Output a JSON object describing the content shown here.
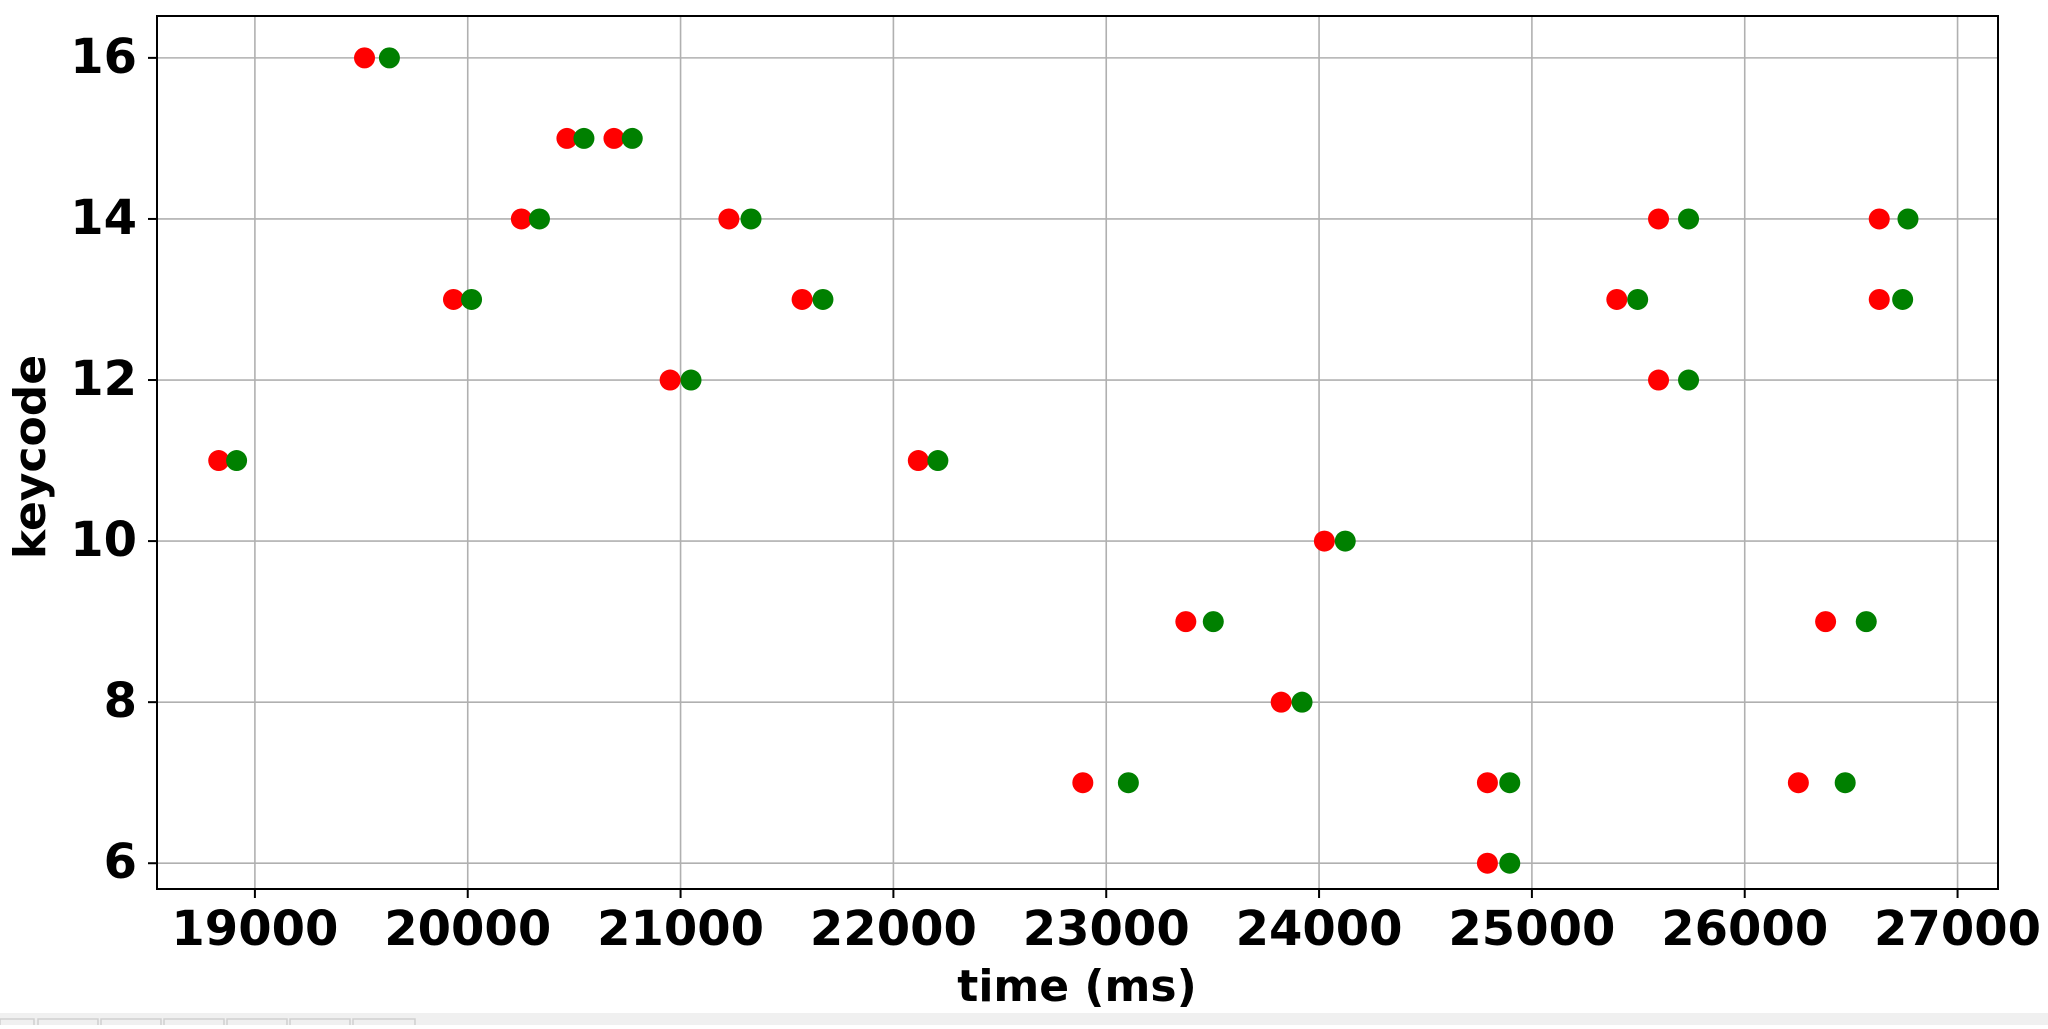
{
  "chart_data": {
    "type": "scatter",
    "x_label": "time (ms)",
    "y_label": "keycode",
    "xlim": [
      18540,
      27190
    ],
    "ylim": [
      5.68,
      16.52
    ],
    "xticks": [
      19000,
      20000,
      21000,
      22000,
      23000,
      24000,
      25000,
      26000,
      27000
    ],
    "yticks": [
      6,
      8,
      10,
      12,
      14,
      16
    ],
    "grid": true,
    "series": [
      {
        "color": "#ff0000",
        "x": [
          18830,
          19515,
          19933,
          20252,
          20466,
          20687,
          20951,
          21227,
          21571,
          22117,
          22890,
          23374,
          23822,
          24025,
          24791,
          24791,
          25399,
          25595,
          25595,
          26252,
          26380,
          26632,
          26632
        ],
        "values": [
          11,
          16,
          13,
          14,
          15,
          15,
          12,
          14,
          13,
          11,
          7,
          9,
          8,
          10,
          7,
          6,
          13,
          14,
          12,
          7,
          9,
          14,
          13
        ]
      },
      {
        "color": "#008000",
        "x": [
          18914,
          19632,
          20018,
          20337,
          20546,
          20773,
          21049,
          21331,
          21669,
          22209,
          23104,
          23503,
          23920,
          24123,
          24896,
          24896,
          25497,
          25736,
          25736,
          26472,
          26571,
          26767,
          26742
        ],
        "values": [
          11,
          16,
          13,
          14,
          15,
          15,
          12,
          14,
          13,
          11,
          7,
          9,
          8,
          10,
          7,
          6,
          13,
          14,
          12,
          7,
          9,
          14,
          13
        ]
      }
    ]
  }
}
